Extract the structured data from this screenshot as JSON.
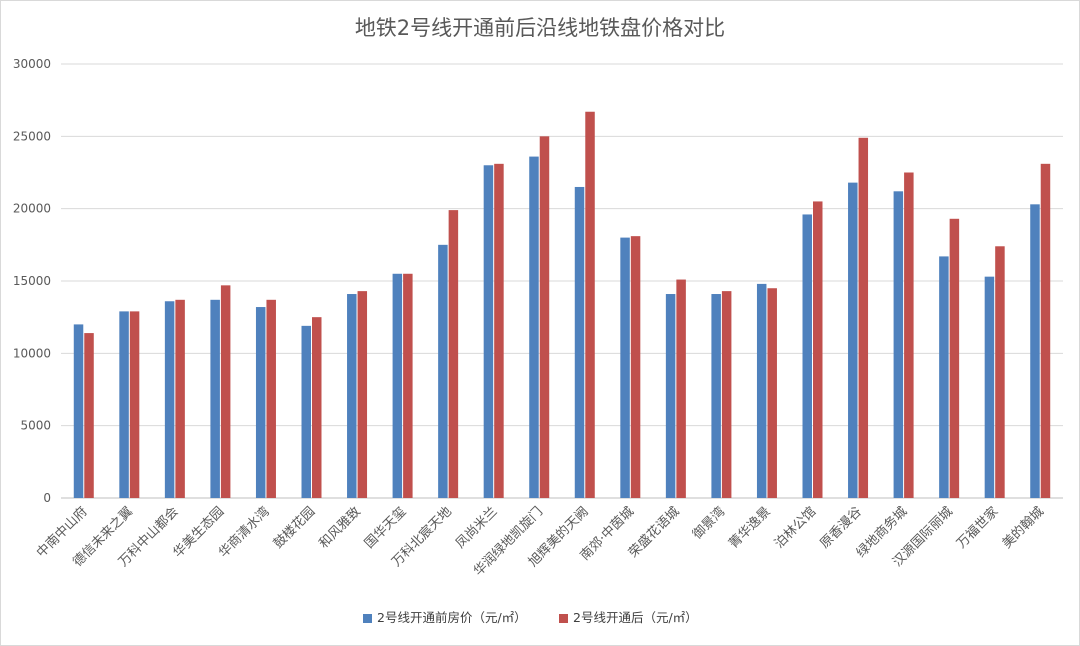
{
  "chart_data": {
    "type": "bar",
    "title": "地铁2号线开通前后沿线地铁盘价格对比",
    "xlabel": "",
    "ylabel": "",
    "ylim": [
      0,
      30000
    ],
    "yticks": [
      0,
      5000,
      10000,
      15000,
      20000,
      25000,
      30000
    ],
    "grid": true,
    "legend_position": "bottom",
    "categories": [
      "中南中山府",
      "德信未来之翼",
      "万科中山都会",
      "华美生态园",
      "华商清水湾",
      "鼓楼花园",
      "和风雅致",
      "国华天玺",
      "万科北宸天地",
      "凤尚米兰",
      "华润绿地凯旋门",
      "旭辉美的天阙",
      "南郊·中茵城",
      "荣盛花语城",
      "御景湾",
      "菁华逸景",
      "泊林公馆",
      "原香漫谷",
      "绿地商务城",
      "汉源国际丽城",
      "万福世家",
      "美的翰城"
    ],
    "series": [
      {
        "name": "2号线开通前房价（元/㎡）",
        "color": "#4f81bd",
        "values": [
          12000,
          12900,
          13600,
          13700,
          13200,
          11900,
          14100,
          15500,
          17500,
          23000,
          23600,
          21500,
          18000,
          14100,
          14100,
          14800,
          19600,
          21800,
          21200,
          16700,
          15300,
          20300
        ]
      },
      {
        "name": "2号线开通后（元/㎡）",
        "color": "#c0504d",
        "values": [
          11400,
          12900,
          13700,
          14700,
          13700,
          12500,
          14300,
          15500,
          19900,
          23100,
          25000,
          26700,
          18100,
          15100,
          14300,
          14500,
          20500,
          24900,
          22500,
          19300,
          17400,
          23100
        ]
      }
    ]
  }
}
